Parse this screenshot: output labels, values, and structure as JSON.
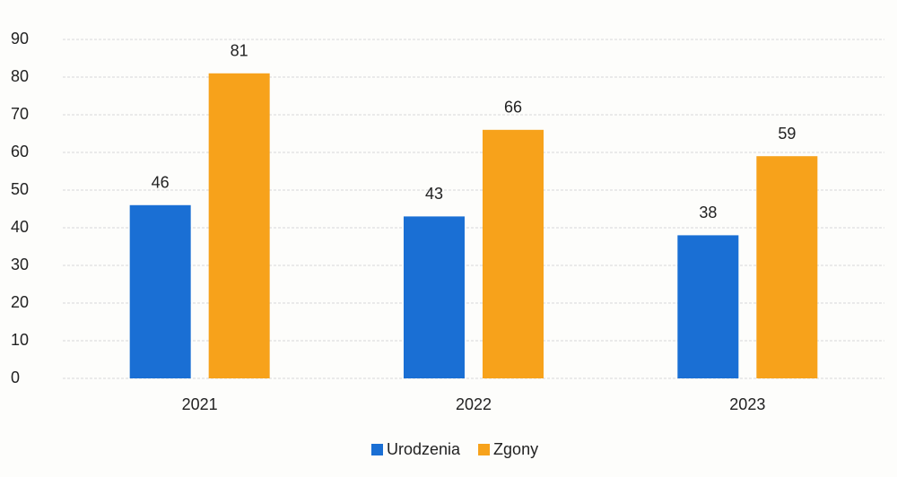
{
  "chart_data": {
    "type": "bar",
    "categories": [
      "2021",
      "2022",
      "2023"
    ],
    "series": [
      {
        "name": "Urodzenia",
        "color": "#1a6fd4",
        "values": [
          46,
          43,
          38
        ]
      },
      {
        "name": "Zgony",
        "color": "#f7a21b",
        "values": [
          81,
          66,
          59
        ]
      }
    ],
    "ylim": [
      0,
      90
    ],
    "yticks": [
      0,
      10,
      20,
      30,
      40,
      50,
      60,
      70,
      80,
      90
    ],
    "grid": true,
    "legend": "bottom"
  }
}
